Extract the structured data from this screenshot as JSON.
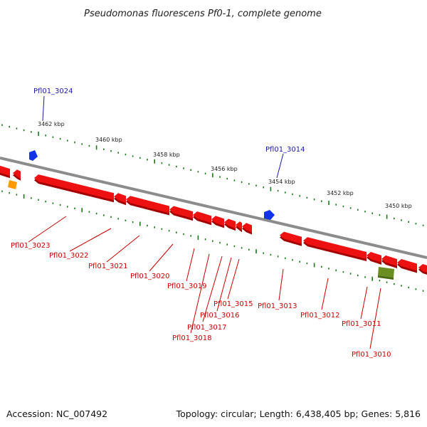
{
  "map": {
    "title": "Pseudomonas fluorescens Pf0-1, complete genome",
    "accession": "Accession: NC_007492",
    "summary": "Topology: circular; Length: 6,438,405 bp; Genes: 5,816",
    "tick_labels": [
      "3462 kbp",
      "3460 kbp",
      "3458 kbp",
      "3456 kbp",
      "3454 kbp",
      "3452 kbp",
      "3450 kbp"
    ],
    "genes_top": [
      "Pfl01_3024",
      "Pfl01_3014"
    ],
    "genes_bottom": [
      "Pfl01_3023",
      "Pfl01_3022",
      "Pfl01_3021",
      "Pfl01_3020",
      "Pfl01_3019",
      "Pfl01_3018",
      "Pfl01_3017",
      "Pfl01_3016",
      "Pfl01_3015",
      "Pfl01_3013",
      "Pfl01_3012",
      "Pfl01_3011",
      "Pfl01_3010"
    ],
    "colors": {
      "backbone": "#8c8c8c",
      "cds": "#ee1111",
      "cds_shadow": "#a00000",
      "ncrna": "#1133ee",
      "orange_feature": "#ff9900",
      "olive_feature": "#6b8e23",
      "tick": "#1a7a1a",
      "label_top": "#1a1aaa",
      "label_bottom": "#cc0000"
    }
  }
}
